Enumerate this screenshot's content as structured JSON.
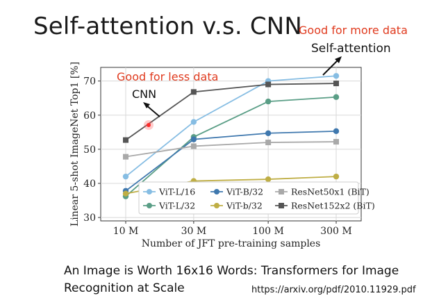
{
  "slide": {
    "title": "Self-attention v.s. CNN",
    "good_more": "Good for more data",
    "self_attention_label": "Self-attention",
    "good_less": "Good for less data",
    "cnn_label": "CNN",
    "footer_line1": "An Image is Worth 16x16 Words: Transformers for Image",
    "footer_line2": "Recognition at Scale",
    "url": "https://arxiv.org/pdf/2010.11929.pdf"
  },
  "chart_data": {
    "type": "line",
    "title": "",
    "xlabel": "Number of JFT pre-training samples",
    "ylabel": "Linear 5-shot ImageNet Top1 [%]",
    "categories": [
      "10 M",
      "30 M",
      "100 M",
      "300 M"
    ],
    "x_scale": "log",
    "ylim": [
      29,
      74
    ],
    "yticks": [
      30,
      40,
      50,
      60,
      70
    ],
    "grid": true,
    "legend_position": "bottom-right",
    "series": [
      {
        "name": "ViT-L/16",
        "color": "#86bde3",
        "marker": "circle",
        "values": [
          42,
          58,
          70,
          71.5
        ]
      },
      {
        "name": "ViT-L/32",
        "color": "#5a9e86",
        "marker": "circle",
        "values": [
          36.2,
          53.6,
          64,
          65.3
        ]
      },
      {
        "name": "ViT-B/32",
        "color": "#3f78ae",
        "marker": "circle",
        "values": [
          37.8,
          52.9,
          54.7,
          55.3
        ]
      },
      {
        "name": "ViT-b/32",
        "color": "#bfae45",
        "marker": "circle",
        "values": [
          37,
          40.7,
          41.2,
          42
        ]
      },
      {
        "name": "ResNet50x1 (BiT)",
        "color": "#a9a9a9",
        "marker": "square",
        "values": [
          47.8,
          50.9,
          52,
          52.2
        ]
      },
      {
        "name": "ResNet152x2 (BiT)",
        "color": "#555555",
        "marker": "square",
        "values": [
          52.7,
          66.8,
          69,
          69.3
        ]
      }
    ]
  }
}
